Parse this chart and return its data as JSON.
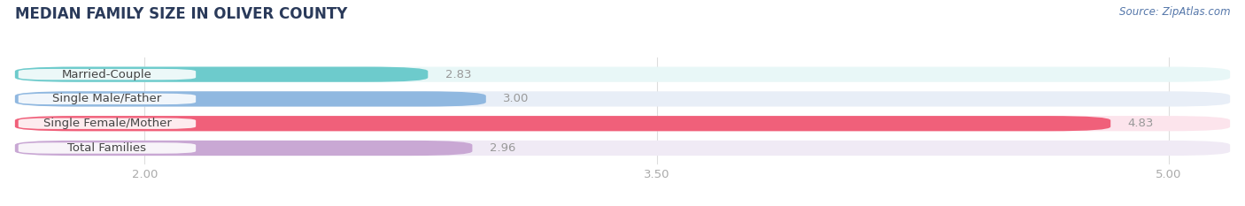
{
  "title": "MEDIAN FAMILY SIZE IN OLIVER COUNTY",
  "source": "Source: ZipAtlas.com",
  "categories": [
    "Married-Couple",
    "Single Male/Father",
    "Single Female/Mother",
    "Total Families"
  ],
  "values": [
    2.83,
    3.0,
    4.83,
    2.96
  ],
  "bar_colors": [
    "#6dcbcc",
    "#90b8e0",
    "#f0607a",
    "#c9a8d4"
  ],
  "bar_bg_colors": [
    "#e8f7f7",
    "#e8eef7",
    "#fce4ec",
    "#f0eaf5"
  ],
  "xlim": [
    1.62,
    5.18
  ],
  "xticks": [
    2.0,
    3.5,
    5.0
  ],
  "xtick_labels": [
    "2.00",
    "3.50",
    "5.00"
  ],
  "title_fontsize": 12,
  "label_fontsize": 9.5,
  "value_fontsize": 9.5,
  "source_fontsize": 8.5,
  "background_color": "#ffffff",
  "bar_height": 0.62,
  "label_text_color": "#444444",
  "value_color_outside": "#999999",
  "title_color": "#2a3a5a",
  "source_color": "#5577aa"
}
